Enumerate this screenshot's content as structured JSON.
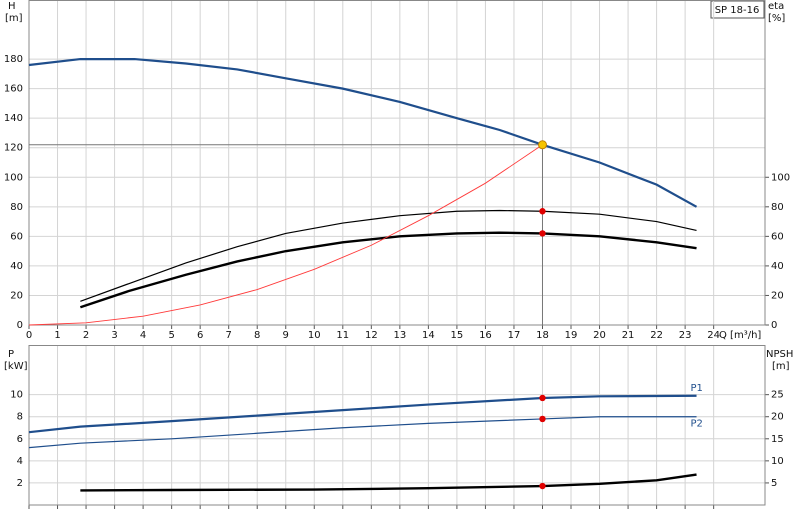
{
  "chart_data": [
    {
      "type": "line",
      "title": "SP 18-16",
      "ylabel": "H",
      "yunit": "[m]",
      "y2label": "eta",
      "y2unit": "[%]",
      "xlabel": "Q [m³/h]",
      "xlim": [
        0,
        25.8
      ],
      "ylim": [
        0,
        220
      ],
      "y2lim": [
        0,
        220
      ],
      "xticks": [
        0,
        1,
        2,
        3,
        4,
        5,
        6,
        7,
        8,
        9,
        10,
        11,
        12,
        13,
        14,
        15,
        16,
        17,
        18,
        19,
        20,
        21,
        22,
        23,
        24
      ],
      "yticks": [
        0,
        20,
        40,
        60,
        80,
        100,
        120,
        140,
        160,
        180
      ],
      "y2ticks": [
        0,
        20,
        40,
        60,
        80,
        100
      ],
      "grid": true,
      "xtick_labels": true,
      "series": [
        {
          "color": "#1f4e8c",
          "width": 2.2,
          "x": [
            0,
            1.8,
            3.7,
            5.5,
            7.3,
            9,
            11,
            13,
            15,
            16.5,
            18,
            20,
            22,
            23.4
          ],
          "values": [
            176,
            180,
            180,
            177,
            173,
            167,
            160,
            151,
            140,
            132,
            122,
            110,
            95,
            80
          ]
        },
        {
          "color": "#000000",
          "width": 1.2,
          "axis": "y2",
          "x": [
            1.8,
            3.5,
            5.5,
            7.3,
            9,
            11,
            13,
            15,
            16.5,
            18,
            20,
            22,
            23.4
          ],
          "values": [
            16,
            28,
            42,
            53,
            62,
            69,
            74,
            77,
            77.5,
            77,
            75,
            70,
            64
          ]
        },
        {
          "color": "#000000",
          "width": 2.4,
          "axis": "y2",
          "x": [
            1.8,
            3.5,
            5.5,
            7.3,
            9,
            11,
            13,
            15,
            16.5,
            18,
            20,
            22,
            23.4
          ],
          "values": [
            12,
            23,
            34,
            43,
            50,
            56,
            60,
            62,
            62.5,
            62,
            60,
            56,
            52
          ]
        },
        {
          "color": "#ff3b3b",
          "width": 0.9,
          "x": [
            0,
            2,
            4,
            6,
            8,
            10,
            12,
            14,
            16,
            18
          ],
          "values": [
            0,
            1.5,
            6,
            13.6,
            24,
            37.7,
            54,
            74,
            96,
            122
          ]
        }
      ],
      "markers": [
        {
          "x": 18,
          "y": 122,
          "color": "#f5c400",
          "crosshair": true
        },
        {
          "x": 18,
          "y": 77,
          "color": "#e00000",
          "axis": "y2"
        },
        {
          "x": 18,
          "y": 62,
          "color": "#e00000",
          "axis": "y2"
        }
      ]
    },
    {
      "type": "line",
      "ylabel": "P",
      "yunit": "[kW]",
      "y2label": "NPSH",
      "y2unit": "[m]",
      "xlim": [
        0,
        25.8
      ],
      "ylim": [
        0,
        14.5
      ],
      "y2lim": [
        0,
        36.25
      ],
      "xticks": [
        0,
        1,
        2,
        3,
        4,
        5,
        6,
        7,
        8,
        9,
        10,
        11,
        12,
        13,
        14,
        15,
        16,
        17,
        18,
        19,
        20,
        21,
        22,
        23,
        24
      ],
      "yticks": [
        2,
        4,
        6,
        8,
        10
      ],
      "y2ticks": [
        5,
        10,
        15,
        20,
        25
      ],
      "grid": true,
      "xtick_labels": false,
      "series": [
        {
          "name": "P1",
          "color": "#1f4e8c",
          "width": 2.2,
          "x": [
            0,
            1.8,
            5,
            8,
            11,
            14,
            18,
            20,
            23.4
          ],
          "values": [
            6.6,
            7.1,
            7.6,
            8.1,
            8.6,
            9.1,
            9.7,
            9.85,
            9.9
          ]
        },
        {
          "name": "P2",
          "color": "#1f4e8c",
          "width": 1.2,
          "x": [
            0,
            1.8,
            5,
            8,
            11,
            14,
            18,
            20,
            23.4
          ],
          "values": [
            5.2,
            5.6,
            6.0,
            6.5,
            7.0,
            7.4,
            7.8,
            8.0,
            8.0
          ]
        },
        {
          "color": "#000000",
          "width": 2.4,
          "axis": "y2",
          "x": [
            1.8,
            5,
            10,
            14,
            18,
            20,
            22,
            23.4
          ],
          "values": [
            3.3,
            3.4,
            3.5,
            3.8,
            4.3,
            4.8,
            5.6,
            6.9
          ]
        }
      ],
      "markers": [
        {
          "x": 18,
          "y": 9.7,
          "color": "#e00000"
        },
        {
          "x": 18,
          "y": 7.8,
          "color": "#e00000"
        },
        {
          "x": 18,
          "y": 4.3,
          "color": "#e00000",
          "axis": "y2"
        }
      ]
    }
  ]
}
